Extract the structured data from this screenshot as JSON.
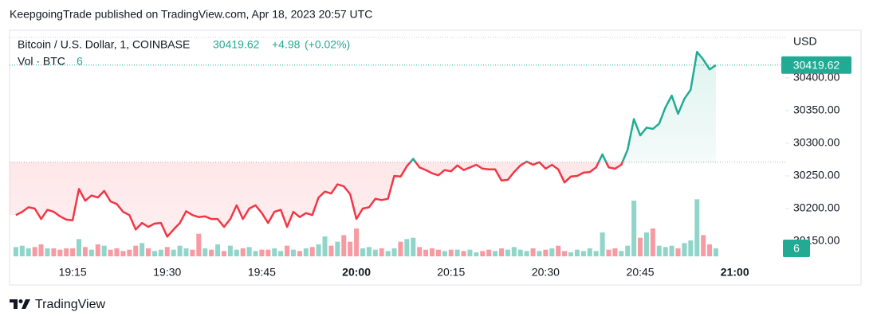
{
  "header": "KeepgoingTrade published on TradingView.com, Apr 18, 2023 20:57 UTC",
  "brand": "TradingView",
  "chart_data": {
    "type": "line",
    "change": "+4.98",
    "change_percent": "(+0.02%)",
    "currency": "USD",
    "x": [
      "19:06",
      "19:07",
      "19:08",
      "19:09",
      "19:10",
      "19:11",
      "19:12",
      "19:13",
      "19:14",
      "19:15",
      "19:16",
      "19:17",
      "19:18",
      "19:19",
      "19:20",
      "19:21",
      "19:22",
      "19:23",
      "19:24",
      "19:25",
      "19:26",
      "19:27",
      "19:28",
      "19:29",
      "19:30",
      "19:31",
      "19:32",
      "19:33",
      "19:34",
      "19:35",
      "19:36",
      "19:37",
      "19:38",
      "19:39",
      "19:40",
      "19:41",
      "19:42",
      "19:43",
      "19:44",
      "19:45",
      "19:46",
      "19:47",
      "19:48",
      "19:49",
      "19:50",
      "19:51",
      "19:52",
      "19:53",
      "19:54",
      "19:55",
      "19:56",
      "19:57",
      "19:58",
      "19:59",
      "20:00",
      "20:01",
      "20:02",
      "20:03",
      "20:04",
      "20:05",
      "20:06",
      "20:07",
      "20:08",
      "20:09",
      "20:10",
      "20:11",
      "20:12",
      "20:13",
      "20:14",
      "20:15",
      "20:16",
      "20:17",
      "20:18",
      "20:19",
      "20:20",
      "20:21",
      "20:22",
      "20:23",
      "20:24",
      "20:25",
      "20:26",
      "20:27",
      "20:28",
      "20:29",
      "20:30",
      "20:31",
      "20:32",
      "20:33",
      "20:34",
      "20:35",
      "20:36",
      "20:37",
      "20:38",
      "20:39",
      "20:40",
      "20:41",
      "20:42",
      "20:43",
      "20:44",
      "20:45",
      "20:46",
      "20:47",
      "20:48",
      "20:49",
      "20:50",
      "20:51",
      "20:52",
      "20:53",
      "20:54",
      "20:55",
      "20:56",
      "20:57"
    ],
    "xlim": [
      "19:05",
      "21:08"
    ],
    "xticks": [
      "19:15",
      "19:30",
      "19:45",
      "20:00",
      "20:15",
      "20:30",
      "20:45",
      "21:00"
    ],
    "ylim": [
      30083,
      30473
    ],
    "yticks": [
      {
        "value": 30150,
        "label": "30150.00"
      },
      {
        "value": 30200,
        "label": "30200.00"
      },
      {
        "value": 30250,
        "label": "30250.00"
      },
      {
        "value": 30300,
        "label": "30300.00"
      },
      {
        "value": 30350,
        "label": "30350.00"
      },
      {
        "value": 30400,
        "label": "30400.00"
      }
    ],
    "y2lim": [
      0,
      60
    ],
    "series": [
      {
        "name": "Bitcoin / U.S. Dollar, 1, COINBASE",
        "color_up": "#22ab94",
        "color_down": "#f23645",
        "baseline": 30271,
        "values": [
          30190,
          30195,
          30202,
          30200,
          30184,
          30198,
          30195,
          30188,
          30183,
          30182,
          30230,
          30212,
          30220,
          30217,
          30227,
          30211,
          30207,
          30195,
          30190,
          30168,
          30178,
          30172,
          30177,
          30178,
          30157,
          30168,
          30178,
          30196,
          30190,
          30187,
          30188,
          30184,
          30184,
          30172,
          30184,
          30205,
          30184,
          30200,
          30205,
          30193,
          30178,
          30195,
          30198,
          30172,
          30195,
          30187,
          30193,
          30190,
          30217,
          30226,
          30223,
          30237,
          30234,
          30222,
          30184,
          30200,
          30202,
          30215,
          30213,
          30215,
          30250,
          30249,
          30265,
          30276,
          30263,
          30259,
          30254,
          30251,
          30259,
          30257,
          30266,
          30259,
          30263,
          30267,
          30261,
          30260,
          30260,
          30243,
          30244,
          30256,
          30266,
          30272,
          30267,
          30271,
          30261,
          30267,
          30260,
          30240,
          30249,
          30250,
          30255,
          30256,
          30263,
          30283,
          30263,
          30261,
          30267,
          30290,
          30337,
          30312,
          30324,
          30322,
          30330,
          30355,
          30373,
          30345,
          30368,
          30382,
          30440,
          30428,
          30413,
          30419.62
        ]
      },
      {
        "name": "Vol · BTC",
        "type": "bar",
        "axis": "y2",
        "color_up": "rgba(34,171,148,0.5)",
        "color_down": "rgba(242,54,69,0.5)",
        "values": [
          7,
          8,
          6,
          7,
          9,
          6,
          6,
          5,
          6,
          6,
          13,
          7,
          5,
          9,
          8,
          5,
          6,
          4,
          5,
          8,
          10,
          6,
          4,
          5,
          7,
          5,
          8,
          6,
          5,
          17,
          6,
          5,
          9,
          4,
          8,
          5,
          6,
          7,
          4,
          5,
          5,
          6,
          4,
          8,
          5,
          4,
          6,
          7,
          9,
          15,
          8,
          11,
          16,
          11,
          21,
          6,
          7,
          5,
          6,
          4,
          6,
          11,
          13,
          14,
          7,
          5,
          6,
          5,
          4,
          5,
          5,
          4,
          5,
          3,
          4,
          5,
          4,
          6,
          5,
          7,
          5,
          4,
          6,
          4,
          5,
          6,
          8,
          4,
          3,
          5,
          4,
          6,
          4,
          18,
          5,
          6,
          4,
          8,
          42,
          14,
          18,
          21,
          8,
          7,
          8,
          6,
          10,
          12,
          43,
          16,
          9,
          6
        ]
      }
    ]
  }
}
